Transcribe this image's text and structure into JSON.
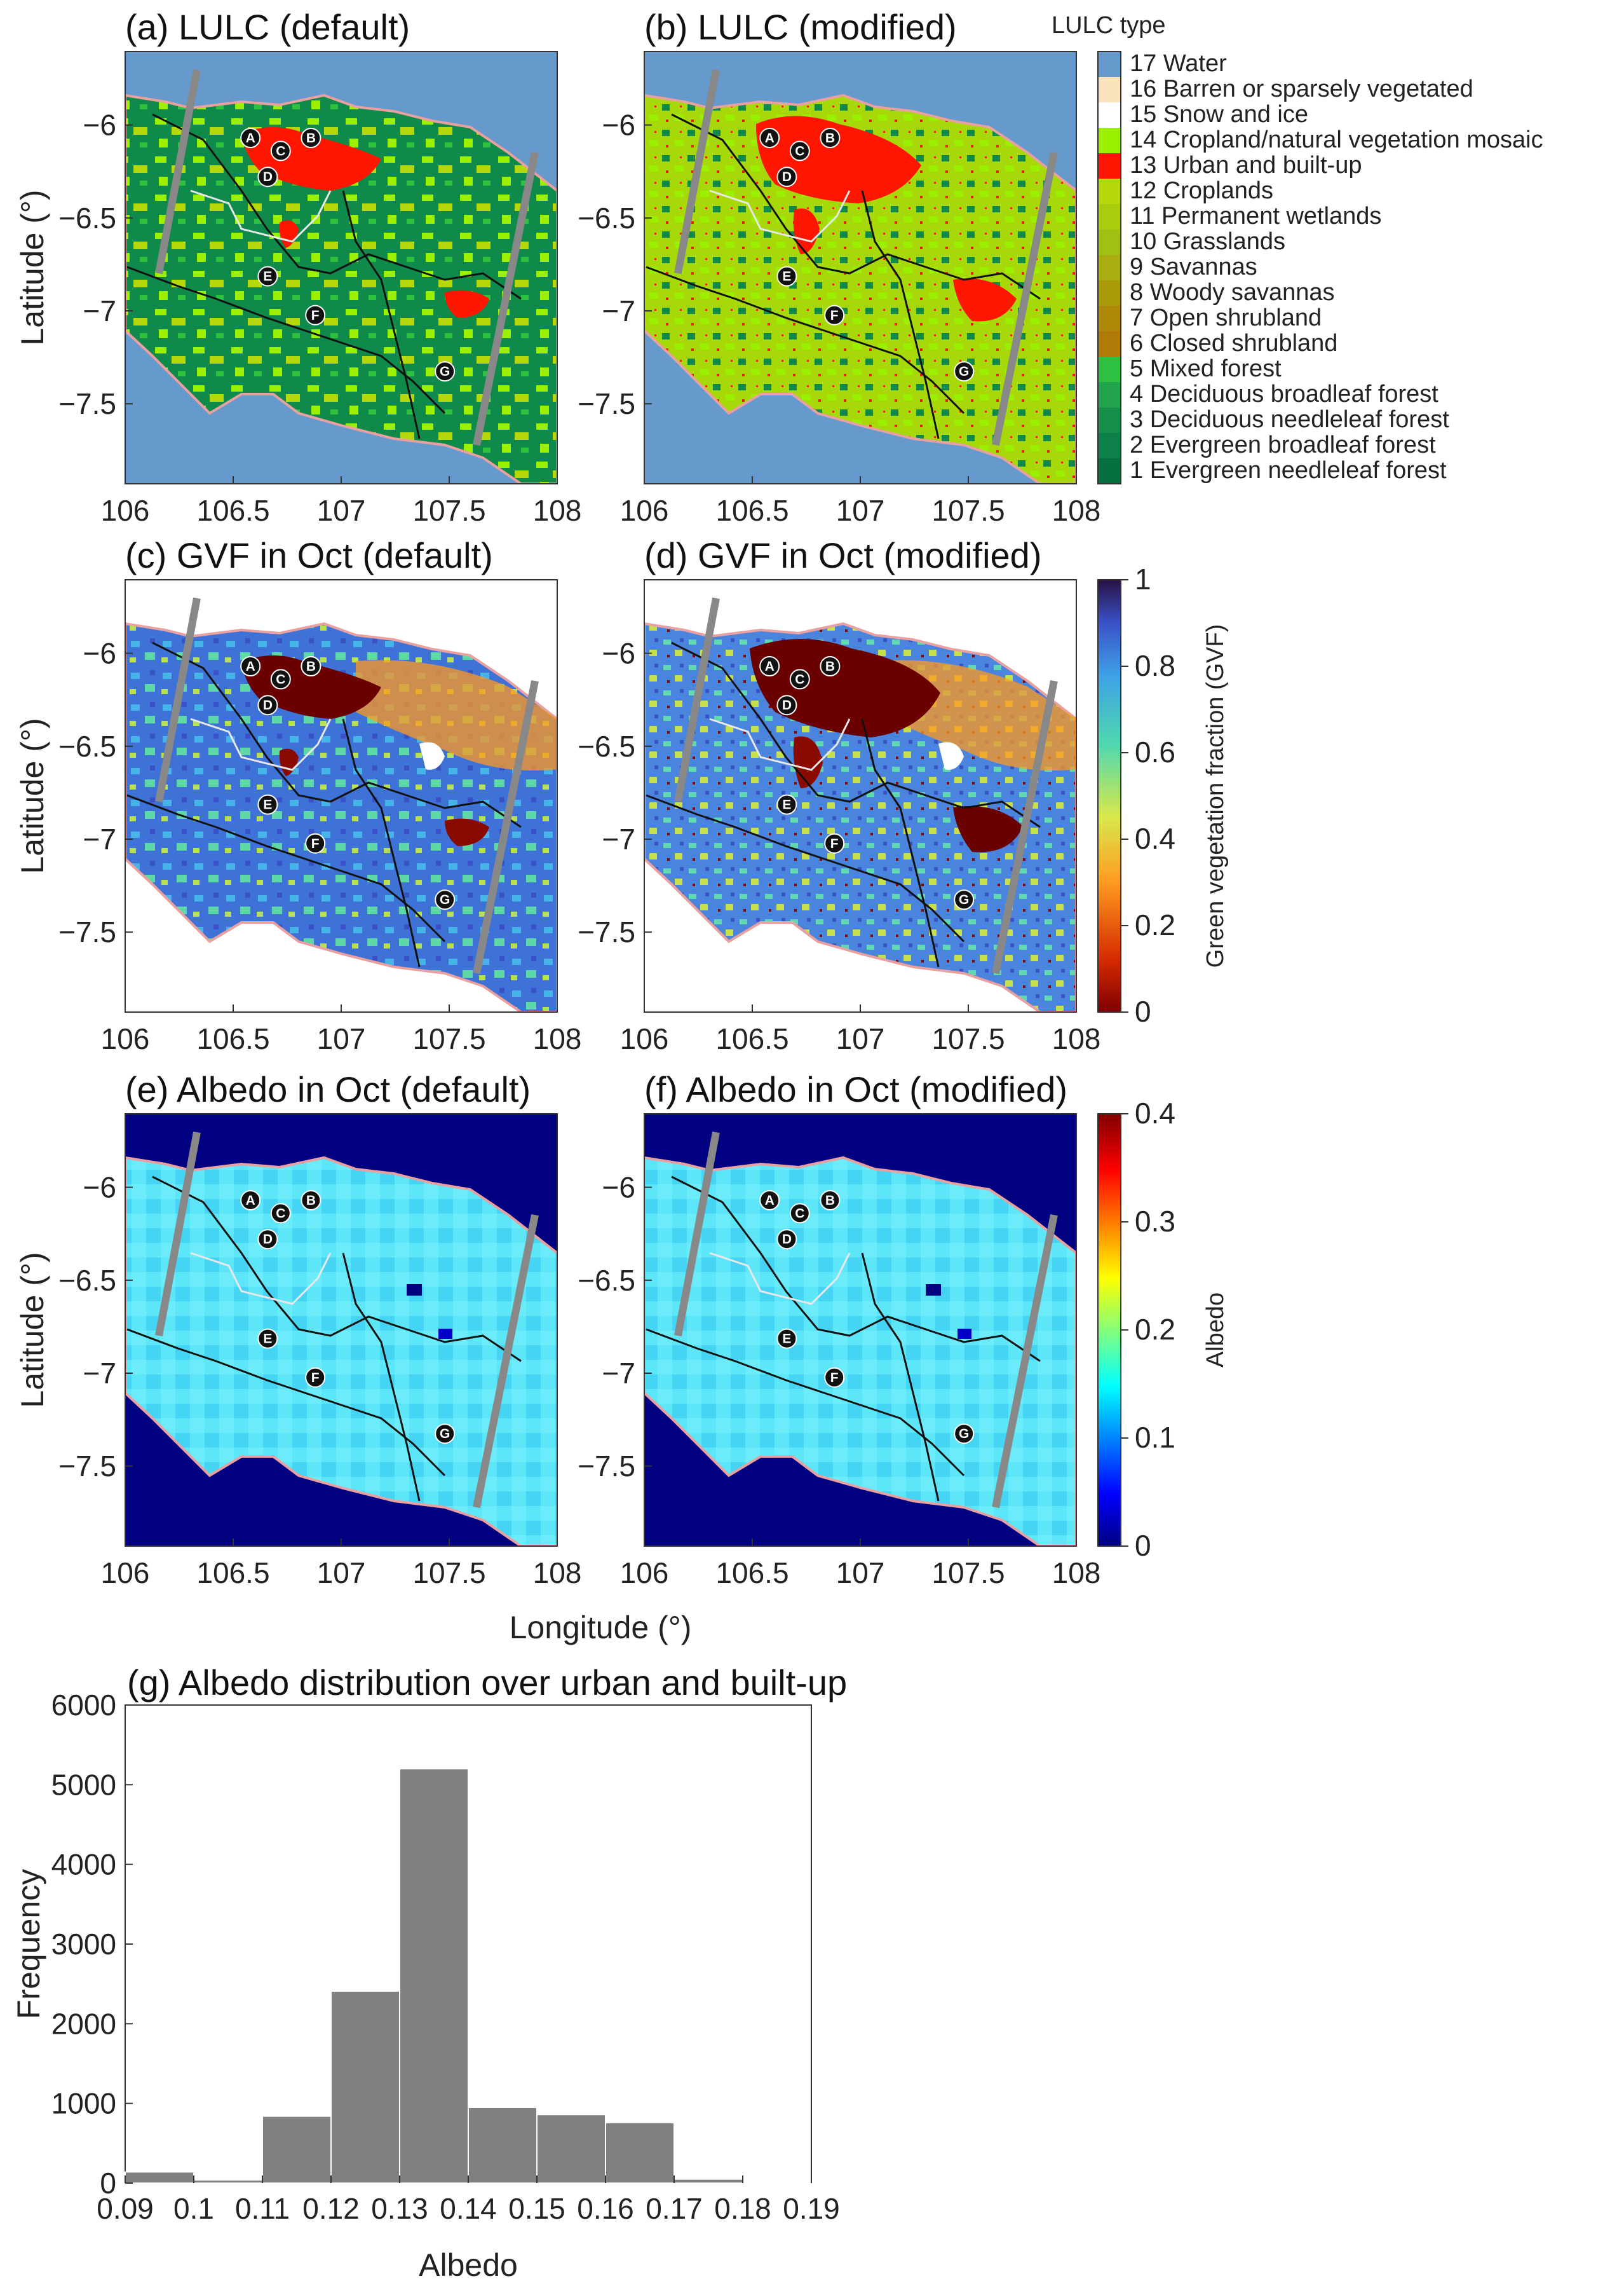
{
  "panels": {
    "a": "(a) LULC (default)",
    "b": "(b) LULC (modified)",
    "c": "(c) GVF in Oct (default)",
    "d": "(d) GVF in Oct (modified)",
    "e": "(e) Albedo in Oct (default)",
    "f": "(f) Albedo in Oct (modified)",
    "g": "(g) Albedo distribution over urban and built-up"
  },
  "axes": {
    "latitude_label": "Latitude (°)",
    "longitude_label": "Longitude (°)",
    "lat_ticks": [
      "−6",
      "−6.5",
      "−7",
      "−7.5"
    ],
    "lon_ticks": [
      "106",
      "106.5",
      "107",
      "107.5",
      "108"
    ]
  },
  "markers": [
    "A",
    "B",
    "C",
    "D",
    "E",
    "F",
    "G"
  ],
  "lulc_legend": {
    "title": "LULC type",
    "items": [
      {
        "label": "17 Water",
        "color": "#6699cc"
      },
      {
        "label": "16 Barren or sparsely vegetated",
        "color": "#fbe3bd"
      },
      {
        "label": "15 Snow and ice",
        "color": "#ffffff"
      },
      {
        "label": "14 Cropland/natural vegetation mosaic",
        "color": "#9bf000"
      },
      {
        "label": "13 Urban and built-up",
        "color": "#ff1500"
      },
      {
        "label": "12 Croplands",
        "color": "#b4d80a"
      },
      {
        "label": "11 Permanent wetlands",
        "color": "#a8cc0e"
      },
      {
        "label": "10 Grasslands",
        "color": "#a0c014"
      },
      {
        "label": "9 Savannas",
        "color": "#a8ae10"
      },
      {
        "label": "8 Woody savannas",
        "color": "#aa9a0a"
      },
      {
        "label": "7 Open shrubland",
        "color": "#ae8808"
      },
      {
        "label": "6 Closed shrubland",
        "color": "#b07a06"
      },
      {
        "label": "5 Mixed forest",
        "color": "#2ec040"
      },
      {
        "label": "4 Deciduous broadleaf forest",
        "color": "#22a44c"
      },
      {
        "label": "3 Deciduous needleleaf forest",
        "color": "#168e4a"
      },
      {
        "label": "2 Evergreen broadleaf forest",
        "color": "#0c8048"
      },
      {
        "label": "1 Evergreen needleleaf forest",
        "color": "#047040"
      }
    ]
  },
  "gvf_colorbar": {
    "label": "Green vegetation fraction (GVF)",
    "ticks": [
      "0",
      "0.2",
      "0.4",
      "0.6",
      "0.8",
      "1"
    ]
  },
  "albedo_colorbar": {
    "label": "Albedo",
    "ticks": [
      "0",
      "0.1",
      "0.2",
      "0.3",
      "0.4"
    ]
  },
  "chart_data": {
    "type": "bar",
    "title": "(g) Albedo distribution over urban and built-up",
    "xlabel": "Albedo",
    "ylabel": "Frequency",
    "x_ticks": [
      "0.09",
      "0.1",
      "0.11",
      "0.12",
      "0.13",
      "0.14",
      "0.15",
      "0.16",
      "0.17",
      "0.18",
      "0.19"
    ],
    "y_ticks": [
      "0",
      "1000",
      "2000",
      "3000",
      "4000",
      "5000",
      "6000"
    ],
    "xlim": [
      0.09,
      0.19
    ],
    "ylim": [
      0,
      6000
    ],
    "bin_edges": [
      0.09,
      0.1,
      0.11,
      0.12,
      0.13,
      0.14,
      0.15,
      0.16,
      0.17,
      0.18,
      0.19
    ],
    "values": [
      140,
      40,
      840,
      2410,
      5200,
      950,
      860,
      760,
      50,
      10
    ],
    "bar_color": "#808080",
    "grid": false
  }
}
